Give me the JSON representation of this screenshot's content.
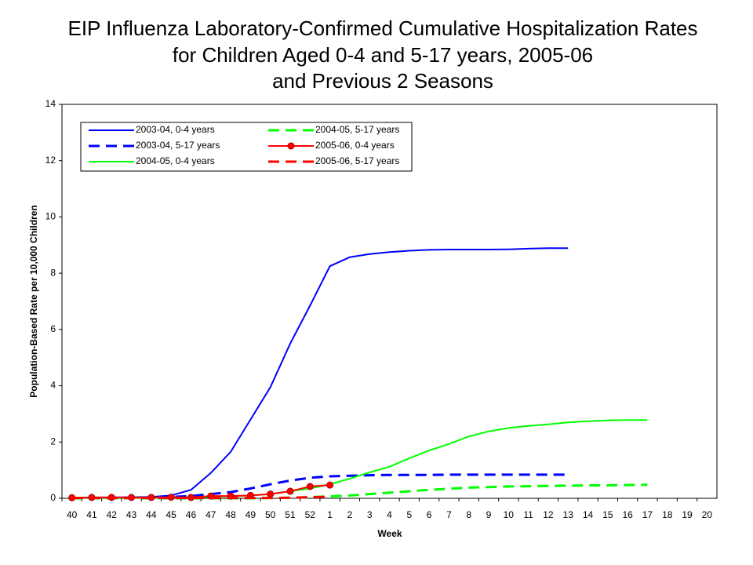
{
  "chart_data": {
    "type": "line",
    "title": [
      "EIP Influenza Laboratory-Confirmed Cumulative Hospitalization Rates",
      "for Children Aged 0-4 and 5-17 years, 2005-06",
      "and Previous 2 Seasons"
    ],
    "xlabel": "Week",
    "ylabel": "Population-Based Rate per 10,000 Children",
    "categories": [
      "40",
      "41",
      "42",
      "43",
      "44",
      "45",
      "46",
      "47",
      "48",
      "49",
      "50",
      "51",
      "52",
      "1",
      "2",
      "3",
      "4",
      "5",
      "6",
      "7",
      "8",
      "9",
      "10",
      "11",
      "12",
      "13",
      "14",
      "15",
      "16",
      "17",
      "18",
      "19",
      "20"
    ],
    "ylim": [
      0,
      14
    ],
    "yticks": [
      0,
      2,
      4,
      6,
      8,
      10,
      12,
      14
    ],
    "grid": false,
    "legend": "upper left",
    "series": [
      {
        "name": "2003-04, 0-4 years",
        "color": "#0000ff",
        "linestyle": "solid",
        "values": [
          0.02,
          0.03,
          0.03,
          0.04,
          0.05,
          0.1,
          0.3,
          0.9,
          1.65,
          2.8,
          3.95,
          5.5,
          6.85,
          8.25,
          8.57,
          8.68,
          8.75,
          8.8,
          8.83,
          8.84,
          8.84,
          8.84,
          8.85,
          8.87,
          8.89,
          8.89,
          null,
          null,
          null,
          null,
          null,
          null,
          null
        ]
      },
      {
        "name": "2003-04, 5-17 years",
        "color": "#0000ff",
        "linestyle": "dashed",
        "values": [
          0.01,
          0.01,
          0.02,
          0.02,
          0.03,
          0.05,
          0.08,
          0.15,
          0.22,
          0.35,
          0.5,
          0.63,
          0.73,
          0.78,
          0.8,
          0.82,
          0.83,
          0.83,
          0.83,
          0.84,
          0.84,
          0.84,
          0.84,
          0.84,
          0.84,
          0.84,
          null,
          null,
          null,
          null,
          null,
          null,
          null
        ]
      },
      {
        "name": "2004-05, 0-4 years",
        "color": "#00ff00",
        "linestyle": "solid",
        "values": [
          0.02,
          0.02,
          0.02,
          0.02,
          0.02,
          0.02,
          0.03,
          0.05,
          0.07,
          0.1,
          0.15,
          0.25,
          0.35,
          0.5,
          0.7,
          0.92,
          1.12,
          1.42,
          1.7,
          1.93,
          2.2,
          2.38,
          2.5,
          2.57,
          2.63,
          2.7,
          2.74,
          2.77,
          2.78,
          2.78,
          null,
          null,
          null
        ]
      },
      {
        "name": "2004-05, 5-17 years",
        "color": "#00ff00",
        "linestyle": "dashed",
        "values": [
          0,
          0,
          0,
          0,
          0,
          0,
          0,
          0,
          0,
          0,
          0.01,
          0.02,
          0.04,
          0.07,
          0.1,
          0.15,
          0.2,
          0.25,
          0.3,
          0.34,
          0.38,
          0.4,
          0.42,
          0.43,
          0.44,
          0.45,
          0.46,
          0.46,
          0.47,
          0.48,
          null,
          null,
          null
        ]
      },
      {
        "name": "2005-06, 0-4 years",
        "color": "#ff0000",
        "linestyle": "solid",
        "marker": "circle",
        "values": [
          0.02,
          0.03,
          0.03,
          0.03,
          0.03,
          0.04,
          0.03,
          0.08,
          0.08,
          0.1,
          0.15,
          0.25,
          0.42,
          0.47,
          null,
          null,
          null,
          null,
          null,
          null,
          null,
          null,
          null,
          null,
          null,
          null,
          null,
          null,
          null,
          null,
          null,
          null,
          null
        ]
      },
      {
        "name": "2005-06, 5-17 years",
        "color": "#ff0000",
        "linestyle": "dashed",
        "values": [
          0.01,
          0.01,
          0.01,
          0.01,
          0.01,
          0.01,
          0.01,
          0.01,
          0.01,
          0.01,
          0.01,
          0.02,
          0.04,
          0.05,
          null,
          null,
          null,
          null,
          null,
          null,
          null,
          null,
          null,
          null,
          null,
          null,
          null,
          null,
          null,
          null,
          null,
          null,
          null
        ]
      }
    ]
  }
}
